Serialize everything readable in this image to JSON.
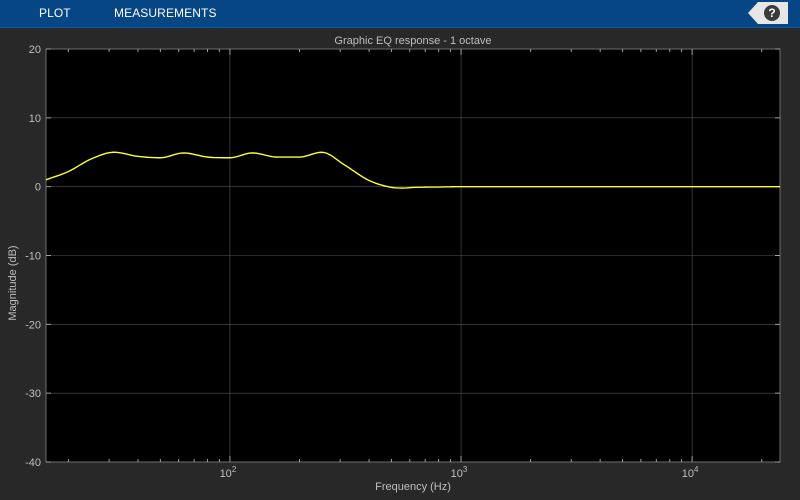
{
  "toolbar": {
    "tabs": [
      {
        "label": "PLOT"
      },
      {
        "label": "MEASUREMENTS"
      }
    ],
    "help_glyph": "?"
  },
  "chart_data": {
    "type": "line",
    "title": "Graphic EQ response - 1 octave",
    "xlabel": "Frequency (Hz)",
    "ylabel": "Magnitude (dB)",
    "xscale": "log",
    "xlim": [
      16,
      24000
    ],
    "ylim": [
      -40,
      20
    ],
    "grid": true,
    "xticks": [
      {
        "value": 100,
        "base": "10",
        "exp": "2"
      },
      {
        "value": 1000,
        "base": "10",
        "exp": "3"
      },
      {
        "value": 10000,
        "base": "10",
        "exp": "4"
      }
    ],
    "yticks": [
      {
        "value": 20,
        "label": "20"
      },
      {
        "value": 10,
        "label": "10"
      },
      {
        "value": 0,
        "label": "0"
      },
      {
        "value": -10,
        "label": "-10"
      },
      {
        "value": -20,
        "label": "-20"
      },
      {
        "value": -30,
        "label": "-30"
      },
      {
        "value": -40,
        "label": "-40"
      }
    ],
    "series": [
      {
        "color": "#ffff33",
        "x": [
          16,
          20,
          25,
          31.5,
          40,
          50,
          63,
          80,
          100,
          125,
          160,
          200,
          250,
          315,
          400,
          500,
          560,
          630,
          800,
          1000,
          2000,
          5000,
          10000,
          24000
        ],
        "y": [
          1.0,
          2.2,
          4.0,
          5.0,
          4.4,
          4.2,
          4.9,
          4.3,
          4.2,
          4.9,
          4.3,
          4.3,
          5.0,
          3.1,
          0.9,
          -0.1,
          -0.2,
          -0.1,
          -0.05,
          0,
          0,
          0,
          0,
          0
        ]
      }
    ]
  },
  "colors": {
    "toolbar_bg": "#064684",
    "figure_bg": "#282828",
    "axes_bg": "#000000",
    "grid": "#555555",
    "text": "#bfbfbf",
    "line": "#ffff33"
  }
}
